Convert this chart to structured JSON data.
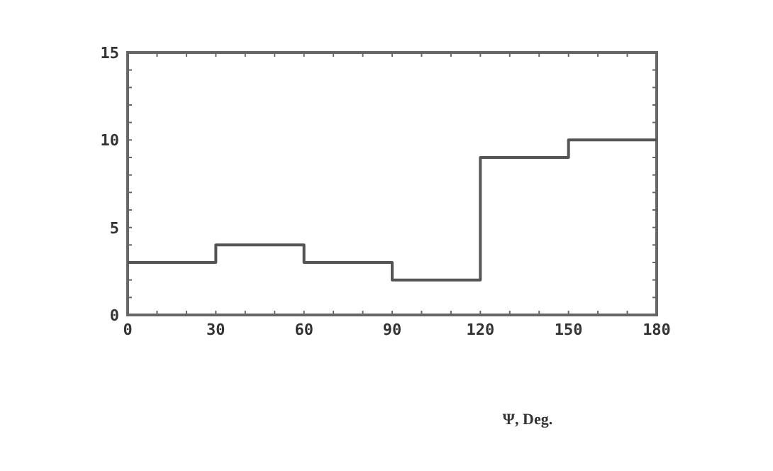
{
  "chart_data": {
    "type": "step",
    "xlabel": "Ψ, Deg.",
    "x": [
      0,
      30,
      60,
      90,
      120,
      150,
      180
    ],
    "series": [
      {
        "color": "#555555",
        "values": [
          3,
          4,
          3,
          2,
          9,
          10,
          10
        ]
      }
    ],
    "xlim": [
      0,
      180
    ],
    "ylim": [
      0,
      15
    ],
    "xticks": [
      0,
      {
        "value": 10,
        "label": null
      },
      {
        "value": 20,
        "label": null
      },
      30,
      {
        "value": 40,
        "label": null
      },
      {
        "value": 50,
        "label": null
      },
      60,
      {
        "value": 70,
        "label": null
      },
      {
        "value": 80,
        "label": null
      },
      90,
      {
        "value": 100,
        "label": null
      },
      {
        "value": 110,
        "label": null
      },
      120,
      {
        "value": 130,
        "label": null
      },
      {
        "value": 140,
        "label": null
      },
      150,
      {
        "value": 160,
        "label": null
      },
      {
        "value": 170,
        "label": null
      },
      180
    ],
    "yticks": [
      0,
      {
        "value": 1,
        "label": null
      },
      {
        "value": 2,
        "label": null
      },
      {
        "value": 3,
        "label": null
      },
      {
        "value": 4,
        "label": null
      },
      5,
      {
        "value": 6,
        "label": null
      },
      {
        "value": 7,
        "label": null
      },
      {
        "value": 8,
        "label": null
      },
      {
        "value": 9,
        "label": null
      },
      10,
      {
        "value": 11,
        "label": null
      },
      {
        "value": 12,
        "label": null
      },
      {
        "value": 13,
        "label": null
      },
      {
        "value": 14,
        "label": null
      },
      15
    ],
    "grid": false
  }
}
